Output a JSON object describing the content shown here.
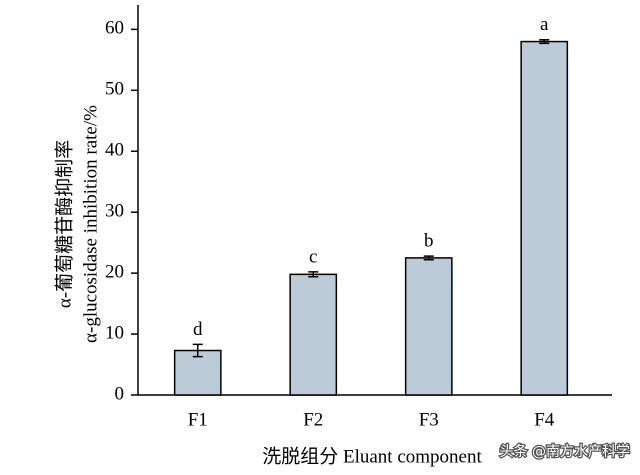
{
  "chart_data": {
    "type": "bar",
    "ylabel": [
      "α-葡萄糖苷酶抑制率",
      "α-glucosidase inhibition rate/%"
    ],
    "xlabel": "洗脱组分 Eluant component",
    "categories": [
      "F1",
      "F2",
      "F3",
      "F4"
    ],
    "values": [
      7.3,
      19.8,
      22.5,
      58
    ],
    "errors": [
      1,
      0.4,
      0.3,
      0.3
    ],
    "annotations": [
      "d",
      "c",
      "b",
      "a"
    ],
    "color": "#bccbd8",
    "ylim": [
      0,
      64
    ],
    "yticks": [
      0,
      10,
      20,
      30,
      40,
      50,
      60
    ],
    "watermark": "头条 @南方水产科学"
  }
}
